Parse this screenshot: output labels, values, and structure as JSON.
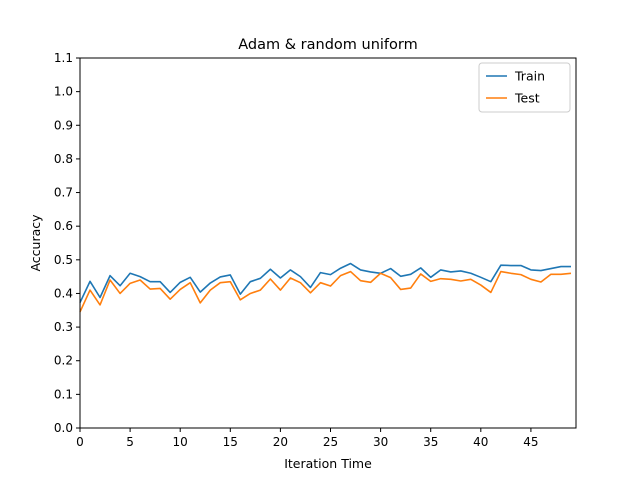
{
  "chart_data": {
    "type": "line",
    "title": "Adam & random uniform",
    "xlabel": "Iteration Time",
    "ylabel": "Accuracy",
    "xlim": [
      0,
      49.5
    ],
    "ylim": [
      0.0,
      1.1
    ],
    "xticks": [
      0,
      5,
      10,
      15,
      20,
      25,
      30,
      35,
      40,
      45
    ],
    "yticks": [
      0.0,
      0.1,
      0.2,
      0.3,
      0.4,
      0.5,
      0.6,
      0.7,
      0.8,
      0.9,
      1.0,
      1.1
    ],
    "grid": false,
    "legend_position": "top-right",
    "x": [
      0,
      1,
      2,
      3,
      4,
      5,
      6,
      7,
      8,
      9,
      10,
      11,
      12,
      13,
      14,
      15,
      16,
      17,
      18,
      19,
      20,
      21,
      22,
      23,
      24,
      25,
      26,
      27,
      28,
      29,
      30,
      31,
      32,
      33,
      34,
      35,
      36,
      37,
      38,
      39,
      40,
      41,
      42,
      43,
      44,
      45,
      46,
      47,
      48,
      49
    ],
    "series": [
      {
        "name": "Train",
        "color": "#1f77b4",
        "values": [
          0.373,
          0.436,
          0.388,
          0.453,
          0.423,
          0.46,
          0.45,
          0.435,
          0.435,
          0.403,
          0.433,
          0.448,
          0.404,
          0.431,
          0.449,
          0.455,
          0.398,
          0.435,
          0.445,
          0.472,
          0.446,
          0.47,
          0.45,
          0.418,
          0.462,
          0.456,
          0.475,
          0.489,
          0.47,
          0.464,
          0.46,
          0.474,
          0.451,
          0.457,
          0.476,
          0.448,
          0.47,
          0.464,
          0.467,
          0.46,
          0.448,
          0.435,
          0.484,
          0.483,
          0.483,
          0.47,
          0.468,
          0.474,
          0.48,
          0.48
        ]
      },
      {
        "name": "Test",
        "color": "#ff7f0e",
        "values": [
          0.345,
          0.41,
          0.366,
          0.44,
          0.4,
          0.43,
          0.44,
          0.413,
          0.415,
          0.383,
          0.412,
          0.432,
          0.372,
          0.41,
          0.432,
          0.435,
          0.381,
          0.4,
          0.41,
          0.443,
          0.41,
          0.446,
          0.432,
          0.402,
          0.432,
          0.422,
          0.453,
          0.465,
          0.438,
          0.433,
          0.46,
          0.447,
          0.412,
          0.416,
          0.458,
          0.436,
          0.444,
          0.442,
          0.437,
          0.442,
          0.425,
          0.403,
          0.465,
          0.46,
          0.456,
          0.442,
          0.434,
          0.457,
          0.457,
          0.46
        ]
      }
    ]
  }
}
